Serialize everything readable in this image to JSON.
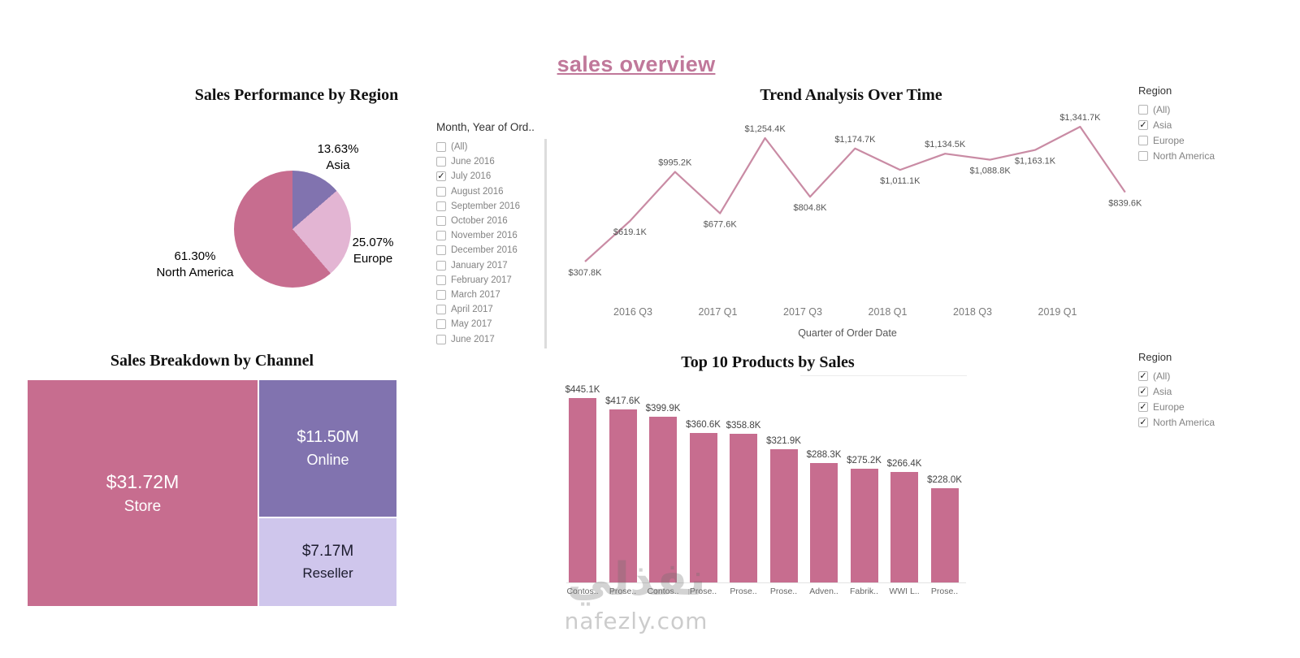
{
  "title": "sales overview",
  "watermark": {
    "logo_text": "نفذلي",
    "site": "nafezly.com"
  },
  "filters": {
    "month": {
      "title": "Month, Year of Ord..",
      "items": [
        {
          "label": "(All)",
          "checked": false
        },
        {
          "label": "June 2016",
          "checked": false
        },
        {
          "label": "July 2016",
          "checked": true
        },
        {
          "label": "August 2016",
          "checked": false
        },
        {
          "label": "September 2016",
          "checked": false
        },
        {
          "label": "October 2016",
          "checked": false
        },
        {
          "label": "November 2016",
          "checked": false
        },
        {
          "label": "December 2016",
          "checked": false
        },
        {
          "label": "January 2017",
          "checked": false
        },
        {
          "label": "February 2017",
          "checked": false
        },
        {
          "label": "March 2017",
          "checked": false
        },
        {
          "label": "April 2017",
          "checked": false
        },
        {
          "label": "May 2017",
          "checked": false
        },
        {
          "label": "June 2017",
          "checked": false
        }
      ]
    },
    "region_top": {
      "title": "Region",
      "items": [
        {
          "label": "(All)",
          "checked": false
        },
        {
          "label": "Asia",
          "checked": true
        },
        {
          "label": "Europe",
          "checked": false
        },
        {
          "label": "North America",
          "checked": false
        }
      ]
    },
    "region_bottom": {
      "title": "Region",
      "items": [
        {
          "label": "(All)",
          "checked": true
        },
        {
          "label": "Asia",
          "checked": true
        },
        {
          "label": "Europe",
          "checked": true
        },
        {
          "label": "North America",
          "checked": true
        }
      ]
    }
  },
  "chart_data": [
    {
      "type": "pie",
      "title": "Sales Performance by Region",
      "slices": [
        {
          "label": "Asia",
          "pct": 13.63,
          "pct_label": "13.63%",
          "color": "#8173af"
        },
        {
          "label": "Europe",
          "pct": 25.07,
          "pct_label": "25.07%",
          "color": "#e3b5d3"
        },
        {
          "label": "North America",
          "pct": 61.3,
          "pct_label": "61.30%",
          "color": "#c76d8f"
        }
      ]
    },
    {
      "type": "line",
      "title": "Trend Analysis Over Time",
      "xlabel": "Quarter of Order Date",
      "unit": "USD thousands",
      "color": "#c98ba4",
      "x_ticks": [
        "2016 Q3",
        "2017 Q1",
        "2017 Q3",
        "2018 Q1",
        "2018 Q3",
        "2019 Q1"
      ],
      "points": [
        {
          "label": "$307.8K",
          "value": 307.8,
          "label_pos": "below"
        },
        {
          "label": "$619.1K",
          "value": 619.1,
          "label_pos": "below"
        },
        {
          "label": "$995.2K",
          "value": 995.2,
          "label_pos": "above"
        },
        {
          "label": "$677.6K",
          "value": 677.6,
          "label_pos": "below"
        },
        {
          "label": "$1,254.4K",
          "value": 1254.4,
          "label_pos": "above"
        },
        {
          "label": "$804.8K",
          "value": 804.8,
          "label_pos": "below"
        },
        {
          "label": "$1,174.7K",
          "value": 1174.7,
          "label_pos": "above"
        },
        {
          "label": "$1,011.1K",
          "value": 1011.1,
          "label_pos": "below"
        },
        {
          "label": "$1,134.5K",
          "value": 1134.5,
          "label_pos": "above"
        },
        {
          "label": "$1,088.8K",
          "value": 1088.8,
          "label_pos": "below"
        },
        {
          "label": "$1,163.1K",
          "value": 1163.1,
          "label_pos": "below"
        },
        {
          "label": "$1,341.7K",
          "value": 1341.7,
          "label_pos": "above"
        },
        {
          "label": "$839.6K",
          "value": 839.6,
          "label_pos": "below"
        }
      ]
    },
    {
      "type": "treemap",
      "title": "Sales Breakdown by Channel",
      "unit": "USD millions",
      "blocks": [
        {
          "label": "Store",
          "value": 31.72,
          "value_label": "$31.72M",
          "color": "#c76d8f",
          "text_color": "#ffffff"
        },
        {
          "label": "Online",
          "value": 11.5,
          "value_label": "$11.50M",
          "color": "#8173af",
          "text_color": "#ffffff"
        },
        {
          "label": "Reseller",
          "value": 7.17,
          "value_label": "$7.17M",
          "color": "#cfc6ec",
          "text_color": "#1c1c2e"
        }
      ]
    },
    {
      "type": "bar",
      "title": "Top 10 Products by Sales",
      "unit": "USD thousands",
      "color": "#c76d8f",
      "categories": [
        "Contos..",
        "Prose..",
        "Contos..",
        "Prose..",
        "Prose..",
        "Prose..",
        "Adven..",
        "Fabrik..",
        "WWI L..",
        "Prose.."
      ],
      "values": [
        445.1,
        417.6,
        399.9,
        360.6,
        358.8,
        321.9,
        288.3,
        275.2,
        266.4,
        228.0
      ],
      "value_labels": [
        "$445.1K",
        "$417.6K",
        "$399.9K",
        "$360.6K",
        "$358.8K",
        "$321.9K",
        "$288.3K",
        "$275.2K",
        "$266.4K",
        "$228.0K"
      ]
    }
  ]
}
